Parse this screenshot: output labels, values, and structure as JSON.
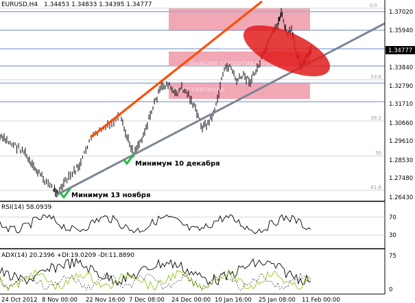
{
  "main_panel": {
    "symbol": "EURUSD,H4",
    "ohlc": "1.34453 1.34833 1.34395 1.34777",
    "current_price": "1.34777",
    "price_labels": [
      "1.37020",
      "1.35940",
      "1.34860",
      "1.33840",
      "1.32790",
      "1.31710",
      "1.30660",
      "1.29610",
      "1.28530",
      "1.27480",
      "1.26430"
    ],
    "fib_labels": [
      "0.0",
      "23.6",
      "38.2",
      "50",
      "61.8"
    ],
    "zone_labels": [
      "Бывшее сопротивление",
      "Бывшее сопротивление",
      "Бывшее сопротивление"
    ],
    "annotations": [
      "Минимум 10 декабря",
      "Минимум 13 ноября"
    ]
  },
  "rsi_panel": {
    "title": "RSI(14) 58.0939",
    "levels": [
      "70",
      "30"
    ]
  },
  "adx_panel": {
    "title": "ADX(14) 20.2396 +DI:19.0209 -DI:11.8890",
    "levels": [
      "75",
      "0"
    ]
  },
  "time_axis": [
    "24 Oct 2012",
    "8 Nov 00:00",
    "22 Nov 16:00",
    "7 Dec 08:00",
    "24 Dec 00:00",
    "10 Jan 16:00",
    "25 Jan 08:00",
    "11 Feb 00:00"
  ],
  "colors": {
    "zone_fill": "#f2a7b5",
    "oval": "#e21b1b",
    "trend_up": "#ff4d00",
    "support": "#7b8594",
    "hline": "#9aaed8",
    "checkmark": "#22bb44",
    "adx_plus": "#9acd32"
  }
}
